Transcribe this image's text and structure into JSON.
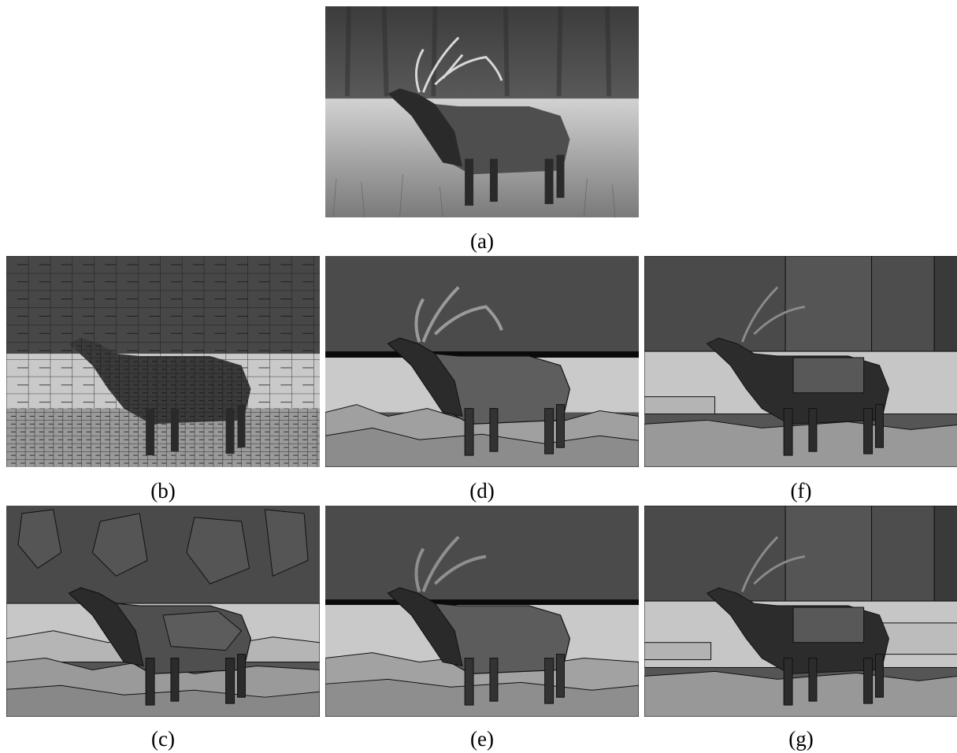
{
  "figure": {
    "captions": {
      "a": "(a)",
      "b": "(b)",
      "c": "(c)",
      "d": "(d)",
      "e": "(e)",
      "f": "(f)",
      "g": "(g)"
    },
    "panels": {
      "a": "original grayscale photograph of a bugling elk standing in a grass meadow with a dark forest background",
      "b": "oversegmentation with many small regions",
      "c": "segmentation with medium-sized regions",
      "d": "segmentation result",
      "e": "segmentation result",
      "f": "segmentation with large rectangular regions",
      "g": "segmentation with large rectangular regions"
    }
  },
  "colors": {
    "background": "#ffffff",
    "forest": "#4a4a4a",
    "grass": "#c8c8c8",
    "elk": "#2b2b2b",
    "body": "#5a5a5a",
    "boundary": "#111111"
  }
}
